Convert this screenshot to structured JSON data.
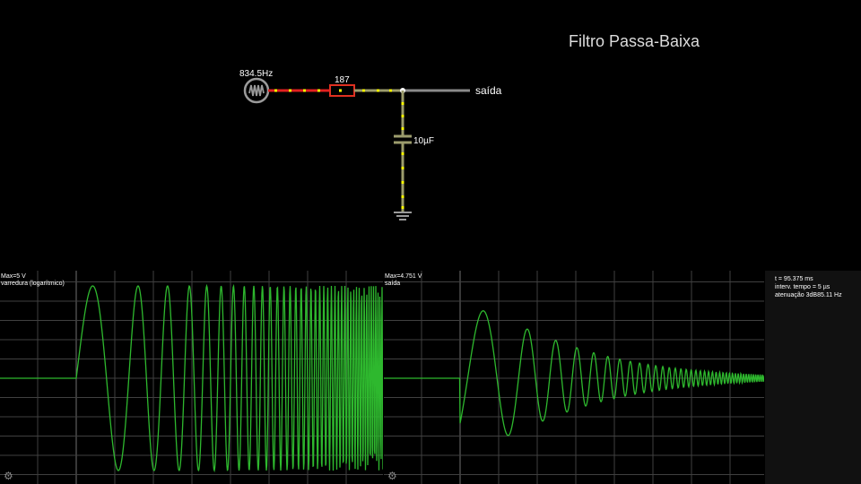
{
  "title": "Filtro Passa-Baixa",
  "circuit": {
    "source_label": "834.5Hz",
    "resistor_label": "187",
    "capacitor_label": "10µF",
    "output_label": "saída"
  },
  "scope1": {
    "max_label": "Max=5 V",
    "signal_label": "varredura (logarítmico)"
  },
  "scope2": {
    "max_label": "Max=4.751 V",
    "signal_label": "saída"
  },
  "info": {
    "time": "t = 95.375 ms",
    "interval": "interv. tempo = 5 µs",
    "attenuation": "atenuação 3dB85.11 Hz"
  },
  "icons": {
    "source": "ac-source-icon",
    "settings": "gear-icon"
  },
  "colors": {
    "wire_active": "#ffff00",
    "wire_current": "#ff0000",
    "wire_idle": "#808080",
    "trace": "#2eb82e",
    "grid": "#404040"
  }
}
